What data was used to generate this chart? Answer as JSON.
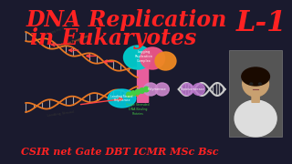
{
  "bg_color": "#1a1a2e",
  "title_line1": "DNA Replication",
  "title_line2": "in Eukaryotes",
  "title_color": "#ff2222",
  "label_L1": "L-1",
  "label_L1_color": "#ff2222",
  "bottom_text": "CSIR net Gate DBT ICMR MSc Bsc",
  "bottom_text_color": "#ff2222",
  "helix_color": "#e87722",
  "clamp_cyan": "#00cccc",
  "clamp_pink": "#ee5588",
  "clamp_orange": "#ee8822",
  "polymerase_purple": "#cc88cc",
  "topoisomerase_purple": "#bb77cc",
  "leading_cyan": "#00ccdd",
  "rna_primer_red": "#ff4444",
  "ssbp_green": "#44cc44",
  "pink_bar": "#ff66aa",
  "diagram_bg": "#d0d0c0",
  "helix_gray": "#cccccc",
  "face_skin": "#c8a070",
  "face_hair": "#1a0a00",
  "face_shirt": "#dddddd",
  "face_bg": "#888888"
}
